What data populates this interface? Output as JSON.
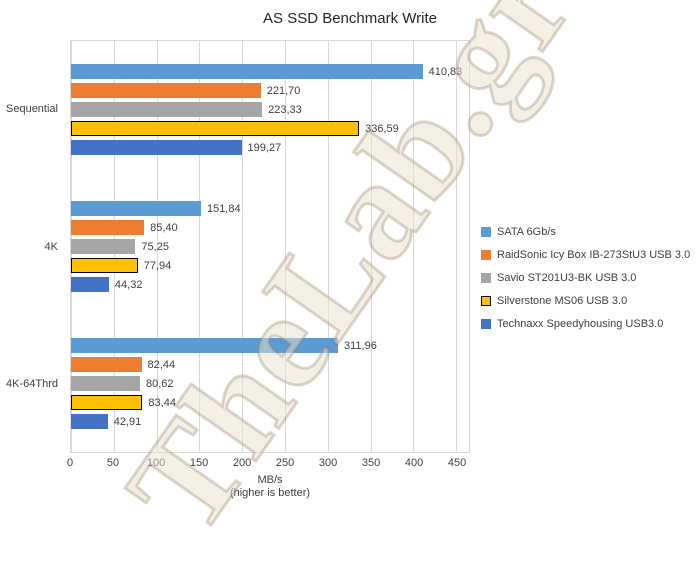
{
  "chart_data": {
    "type": "bar",
    "orientation": "horizontal",
    "title": "AS SSD Benchmark Write",
    "xlabel": "MB/s",
    "xsub": "(higher is better)",
    "categories": [
      "Sequential",
      "4K",
      "4K-64Thrd"
    ],
    "series": [
      {
        "name": "SATA 6Gb/s",
        "color": "#5B9BD5",
        "values": [
          410.83,
          151.84,
          311.96
        ]
      },
      {
        "name": "RaidSonic Icy Box IB-273StU3 USB 3.0",
        "color": "#ED7D31",
        "values": [
          221.7,
          85.4,
          82.44
        ]
      },
      {
        "name": "Savio ST201U3-BK USB 3.0",
        "color": "#A5A5A5",
        "values": [
          223.33,
          75.25,
          80.62
        ]
      },
      {
        "name": "Silverstone MS06 USB 3.0",
        "color": "#FFC000",
        "border": "#000000",
        "values": [
          336.59,
          77.94,
          83.44
        ]
      },
      {
        "name": "Technaxx Speedyhousing USB3.0",
        "color": "#4472C4",
        "values": [
          199.27,
          44.32,
          42.91
        ]
      }
    ],
    "value_labels": [
      [
        "410,83",
        "151,84",
        "311,96"
      ],
      [
        "221,70",
        "85,40",
        "82,44"
      ],
      [
        "223,33",
        "75,25",
        "80,62"
      ],
      [
        "336,59",
        "77,94",
        "83,44"
      ],
      [
        "199,27",
        "44,32",
        "42,91"
      ]
    ],
    "decimal_separator": ",",
    "axis": {
      "min": 0,
      "max": 450,
      "step": 50,
      "scale_max": 465
    },
    "grid": true,
    "legend_position": "right"
  },
  "watermark": {
    "text": "TheLab.gr"
  }
}
